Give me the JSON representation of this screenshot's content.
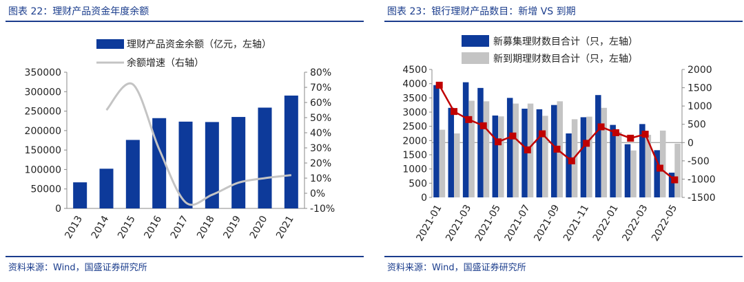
{
  "colors": {
    "bar": "#0d3a9a",
    "line_gray": "#c4c4c4",
    "bar_gray": "#c4c4c4",
    "line_red": "#c00000",
    "title": "#1a3c8c"
  },
  "left": {
    "title": "图表 22：理财产品资金年度余额",
    "source": "资料来源：Wind，国盛证券研究所"
  },
  "right": {
    "title": "图表 23：银行理财产品数目：新增 VS 到期",
    "source": "资料来源：Wind，国盛证券研究所"
  },
  "chart_data": [
    {
      "type": "bar",
      "title": "",
      "categories": [
        "2013",
        "2014",
        "2015",
        "2016",
        "2017",
        "2018",
        "2019",
        "2020",
        "2021"
      ],
      "series": [
        {
          "name": "理财产品资金余额（亿元，左轴）",
          "type": "bar",
          "axis": "left",
          "values": [
            67000,
            102000,
            176000,
            232000,
            223000,
            222000,
            235000,
            259000,
            290000
          ]
        },
        {
          "name": "余额增速（右轴）",
          "type": "line",
          "axis": "right",
          "values": [
            null,
            55,
            72,
            29,
            -6,
            -1,
            7,
            10,
            12
          ]
        }
      ],
      "ylim_left": [
        0,
        350000
      ],
      "ylim_right": [
        -10,
        80
      ],
      "y_ticks_left": [
        "0",
        "50000",
        "100000",
        "150000",
        "200000",
        "250000",
        "300000",
        "350000"
      ],
      "y_ticks_right": [
        "-10%",
        "0%",
        "10%",
        "20%",
        "30%",
        "40%",
        "50%",
        "60%",
        "70%",
        "80%"
      ],
      "legend_position": "top"
    },
    {
      "type": "bar",
      "title": "",
      "categories": [
        "2021-01",
        "2021-02",
        "2021-03",
        "2021-04",
        "2021-05",
        "2021-06",
        "2021-07",
        "2021-08",
        "2021-09",
        "2021-10",
        "2021-11",
        "2021-12",
        "2022-01",
        "2022-02",
        "2022-03",
        "2022-04",
        "2022-05"
      ],
      "x_tick_labels": [
        "2021-01",
        "2021-03",
        "2021-05",
        "2021-07",
        "2021-09",
        "2021-11",
        "2022-01",
        "2022-03",
        "2022-05"
      ],
      "series": [
        {
          "name": "新募集理财数目合计（只，左轴）",
          "type": "bar",
          "axis": "left",
          "values": [
            3950,
            3150,
            4050,
            3850,
            2880,
            3500,
            3120,
            3100,
            3250,
            2250,
            2820,
            3600,
            2550,
            1870,
            2580,
            1660,
            870
          ]
        },
        {
          "name": "新到期理财数目合计（只，左轴）",
          "type": "bar",
          "axis": "left",
          "values": [
            2380,
            2250,
            3400,
            3380,
            2850,
            3300,
            3300,
            2870,
            3380,
            2750,
            2840,
            3150,
            2300,
            1650,
            2200,
            2350,
            1890
          ]
        },
        {
          "name": "",
          "type": "line",
          "axis": "right",
          "values": [
            1570,
            850,
            630,
            460,
            20,
            180,
            -200,
            240,
            -180,
            -500,
            -20,
            430,
            270,
            120,
            230,
            -700,
            -1020
          ]
        }
      ],
      "ylim_left": [
        0,
        4500
      ],
      "ylim_right": [
        -1500,
        2000
      ],
      "y_ticks_left": [
        "0",
        "500",
        "1000",
        "1500",
        "2000",
        "2500",
        "3000",
        "3500",
        "4000",
        "4500"
      ],
      "y_ticks_right": [
        "-1500",
        "-1000",
        "-500",
        "0",
        "500",
        "1000",
        "1500",
        "2000"
      ],
      "legend_position": "top"
    }
  ]
}
